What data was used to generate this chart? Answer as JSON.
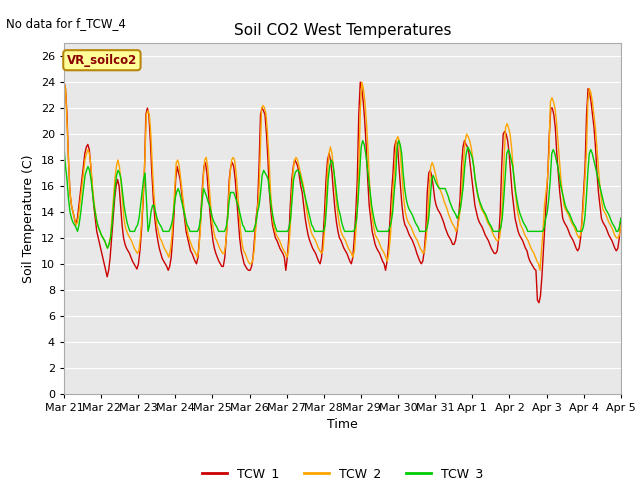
{
  "title": "Soil CO2 West Temperatures",
  "xlabel": "Time",
  "ylabel": "Soil Temperature (C)",
  "no_data_text": "No data for f_TCW_4",
  "annotation_text": "VR_soilco2",
  "ylim": [
    0,
    27
  ],
  "yticks": [
    0,
    2,
    4,
    6,
    8,
    10,
    12,
    14,
    16,
    18,
    20,
    22,
    24,
    26
  ],
  "bg_color": "#e8e8e8",
  "fig_color": "#ffffff",
  "line_colors": {
    "TCW_1": "#cc0000",
    "TCW_2": "#ffa500",
    "TCW_3": "#00cc00"
  },
  "num_days": 15.5,
  "xtick_labels": [
    "Mar 21",
    "Mar 22",
    "Mar 23",
    "Mar 24",
    "Mar 25",
    "Mar 26",
    "Mar 27",
    "Mar 28",
    "Mar 29",
    "Mar 30",
    "Mar 31",
    "Apr 1",
    "Apr 2",
    "Apr 3",
    "Apr 4",
    "Apr 5"
  ],
  "TCW_1": [
    24.0,
    23.5,
    21.5,
    18.0,
    15.5,
    14.5,
    14.0,
    13.5,
    13.0,
    13.5,
    14.5,
    15.5,
    16.5,
    17.5,
    18.5,
    19.0,
    19.2,
    18.8,
    17.5,
    15.8,
    14.5,
    13.5,
    12.5,
    12.0,
    11.5,
    11.0,
    10.5,
    10.0,
    9.5,
    9.0,
    9.5,
    10.5,
    12.0,
    13.5,
    15.0,
    16.0,
    16.5,
    16.0,
    14.5,
    13.0,
    12.0,
    11.5,
    11.2,
    11.0,
    10.8,
    10.5,
    10.2,
    10.0,
    9.8,
    9.6,
    10.0,
    11.0,
    12.5,
    14.5,
    17.0,
    21.5,
    22.0,
    21.5,
    19.5,
    17.0,
    15.0,
    13.5,
    12.5,
    11.8,
    11.2,
    10.8,
    10.4,
    10.2,
    10.0,
    9.8,
    9.5,
    9.8,
    10.5,
    12.0,
    14.0,
    16.5,
    17.5,
    17.0,
    16.5,
    15.5,
    14.5,
    13.5,
    12.5,
    12.0,
    11.5,
    11.0,
    10.8,
    10.5,
    10.2,
    10.0,
    10.5,
    12.0,
    14.0,
    16.0,
    17.5,
    17.8,
    17.0,
    15.5,
    14.0,
    12.8,
    11.8,
    11.2,
    10.8,
    10.5,
    10.2,
    10.0,
    9.8,
    9.8,
    10.5,
    12.0,
    14.0,
    16.5,
    17.5,
    17.8,
    17.5,
    16.5,
    15.0,
    13.5,
    12.0,
    11.0,
    10.5,
    10.0,
    9.8,
    9.6,
    9.5,
    9.5,
    9.8,
    10.5,
    12.0,
    13.5,
    14.5,
    17.5,
    21.5,
    22.0,
    21.8,
    21.5,
    20.0,
    18.0,
    15.5,
    14.0,
    13.0,
    12.5,
    12.0,
    11.8,
    11.5,
    11.2,
    11.0,
    10.8,
    10.5,
    9.5,
    10.5,
    12.0,
    14.5,
    16.5,
    17.5,
    18.0,
    17.8,
    17.5,
    16.8,
    16.0,
    15.5,
    14.5,
    13.5,
    12.8,
    12.2,
    11.8,
    11.5,
    11.2,
    11.0,
    10.8,
    10.5,
    10.2,
    10.0,
    10.5,
    12.0,
    14.0,
    16.5,
    18.0,
    18.5,
    18.0,
    17.0,
    15.5,
    14.2,
    13.2,
    12.5,
    12.0,
    11.8,
    11.5,
    11.2,
    11.0,
    10.8,
    10.5,
    10.2,
    10.0,
    10.5,
    12.0,
    14.0,
    16.5,
    21.5,
    24.0,
    23.5,
    22.5,
    21.0,
    19.0,
    16.5,
    14.5,
    13.5,
    12.5,
    12.0,
    11.5,
    11.2,
    11.0,
    10.8,
    10.5,
    10.2,
    10.0,
    9.5,
    10.2,
    11.5,
    13.5,
    15.5,
    17.0,
    19.0,
    19.5,
    19.2,
    17.5,
    16.0,
    14.5,
    13.5,
    13.0,
    12.8,
    12.5,
    12.2,
    12.0,
    11.8,
    11.5,
    11.2,
    10.8,
    10.5,
    10.2,
    10.0,
    10.2,
    11.0,
    12.5,
    15.5,
    17.0,
    17.2,
    16.8,
    16.0,
    15.0,
    14.5,
    14.2,
    14.0,
    13.8,
    13.5,
    13.2,
    12.8,
    12.5,
    12.2,
    12.0,
    11.8,
    11.5,
    11.5,
    11.8,
    12.5,
    13.5,
    15.0,
    17.5,
    19.0,
    19.5,
    19.2,
    19.0,
    18.5,
    17.5,
    16.5,
    15.5,
    14.5,
    14.0,
    13.5,
    13.2,
    13.0,
    12.8,
    12.5,
    12.2,
    12.0,
    11.8,
    11.5,
    11.2,
    11.0,
    10.8,
    10.8,
    11.0,
    12.0,
    14.0,
    17.5,
    20.0,
    20.2,
    20.0,
    19.5,
    18.5,
    17.0,
    15.5,
    14.5,
    13.5,
    13.0,
    12.5,
    12.2,
    12.0,
    11.8,
    11.5,
    11.2,
    11.0,
    10.5,
    10.2,
    10.0,
    9.8,
    9.6,
    9.5,
    7.2,
    7.0,
    7.5,
    9.0,
    11.0,
    13.0,
    15.0,
    17.0,
    20.0,
    22.0,
    22.0,
    21.5,
    20.5,
    18.5,
    17.0,
    15.5,
    14.5,
    13.5,
    13.2,
    13.0,
    12.8,
    12.5,
    12.2,
    12.0,
    11.8,
    11.5,
    11.2,
    11.0,
    11.2,
    12.0,
    13.5,
    15.5,
    17.5,
    21.5,
    23.5,
    23.2,
    22.5,
    21.5,
    20.5,
    19.0,
    17.0,
    15.5,
    14.5,
    13.5,
    13.2,
    13.0,
    12.8,
    12.5,
    12.2,
    12.0,
    11.8,
    11.5,
    11.2,
    11.0,
    11.2,
    12.0,
    13.5
  ],
  "TCW_2": [
    24.0,
    23.5,
    21.0,
    18.0,
    15.5,
    14.5,
    14.0,
    13.5,
    13.0,
    13.2,
    14.0,
    15.0,
    16.0,
    17.0,
    18.0,
    18.5,
    18.8,
    18.5,
    17.5,
    16.0,
    14.8,
    14.0,
    13.2,
    12.8,
    12.5,
    12.2,
    12.0,
    11.8,
    11.5,
    11.2,
    11.5,
    12.0,
    13.5,
    15.0,
    16.5,
    17.5,
    18.0,
    17.5,
    16.5,
    15.0,
    13.5,
    12.8,
    12.5,
    12.2,
    12.0,
    11.8,
    11.5,
    11.2,
    11.0,
    10.8,
    11.0,
    12.0,
    13.5,
    15.5,
    18.0,
    21.5,
    21.8,
    21.5,
    20.0,
    17.5,
    15.5,
    14.0,
    13.0,
    12.5,
    12.0,
    11.8,
    11.5,
    11.2,
    11.0,
    10.8,
    10.5,
    11.0,
    12.0,
    13.8,
    15.8,
    17.8,
    18.0,
    17.5,
    16.5,
    15.5,
    14.5,
    13.5,
    12.8,
    12.2,
    11.8,
    11.5,
    11.2,
    11.0,
    10.8,
    10.5,
    11.0,
    12.5,
    14.5,
    16.5,
    18.0,
    18.2,
    17.5,
    16.0,
    14.5,
    13.2,
    12.5,
    12.0,
    11.8,
    11.5,
    11.2,
    11.0,
    10.8,
    10.8,
    11.5,
    13.0,
    15.0,
    17.0,
    18.0,
    18.2,
    18.0,
    17.0,
    15.5,
    14.0,
    12.5,
    11.5,
    11.0,
    10.8,
    10.5,
    10.2,
    10.0,
    10.0,
    10.2,
    11.0,
    12.5,
    14.0,
    15.0,
    18.0,
    22.0,
    22.2,
    22.0,
    21.5,
    20.0,
    18.0,
    15.5,
    14.0,
    13.0,
    12.5,
    12.2,
    12.0,
    11.8,
    11.5,
    11.2,
    11.0,
    10.8,
    10.5,
    11.0,
    12.5,
    15.0,
    17.0,
    18.0,
    18.2,
    18.0,
    17.5,
    17.0,
    16.5,
    16.0,
    15.2,
    14.2,
    13.5,
    13.0,
    12.5,
    12.2,
    12.0,
    11.8,
    11.5,
    11.2,
    11.0,
    10.8,
    11.0,
    12.5,
    14.5,
    17.0,
    18.5,
    19.0,
    18.5,
    17.5,
    16.0,
    14.8,
    13.8,
    13.0,
    12.5,
    12.2,
    12.0,
    11.8,
    11.5,
    11.2,
    11.0,
    10.8,
    10.5,
    11.0,
    12.5,
    14.5,
    17.5,
    22.0,
    24.0,
    23.5,
    22.5,
    21.0,
    19.0,
    16.5,
    14.5,
    13.5,
    12.8,
    12.2,
    12.0,
    11.8,
    11.5,
    11.2,
    11.0,
    10.8,
    10.5,
    10.2,
    10.8,
    12.0,
    14.0,
    16.0,
    17.5,
    19.5,
    19.8,
    19.5,
    18.0,
    16.5,
    15.0,
    14.0,
    13.5,
    13.2,
    13.0,
    12.8,
    12.5,
    12.2,
    12.0,
    11.8,
    11.5,
    11.2,
    11.0,
    10.8,
    11.0,
    12.0,
    13.5,
    15.8,
    17.5,
    17.8,
    17.5,
    17.0,
    16.5,
    16.0,
    15.8,
    15.5,
    15.2,
    14.8,
    14.5,
    14.2,
    13.8,
    13.5,
    13.2,
    13.0,
    12.8,
    12.5,
    12.8,
    13.5,
    14.5,
    16.0,
    18.0,
    19.5,
    20.0,
    19.8,
    19.5,
    19.0,
    18.2,
    17.2,
    16.2,
    15.5,
    15.0,
    14.5,
    14.2,
    14.0,
    13.8,
    13.5,
    13.2,
    13.0,
    12.8,
    12.5,
    12.2,
    12.0,
    11.8,
    11.8,
    12.0,
    13.0,
    15.0,
    18.0,
    20.5,
    20.8,
    20.5,
    20.0,
    19.0,
    17.5,
    16.0,
    15.0,
    14.0,
    13.5,
    13.0,
    12.8,
    12.5,
    12.2,
    12.0,
    11.8,
    11.5,
    11.2,
    11.0,
    10.8,
    10.5,
    10.2,
    10.0,
    9.5,
    11.0,
    12.5,
    14.5,
    15.5,
    16.5,
    18.5,
    22.5,
    22.8,
    22.5,
    22.0,
    21.0,
    19.5,
    18.0,
    16.5,
    15.5,
    14.5,
    14.2,
    14.0,
    13.8,
    13.5,
    13.2,
    13.0,
    12.8,
    12.5,
    12.2,
    12.0,
    12.2,
    13.0,
    14.5,
    16.5,
    18.5,
    22.5,
    23.5,
    23.2,
    22.5,
    21.5,
    20.5,
    19.0,
    17.5,
    16.0,
    15.0,
    14.2,
    14.0,
    13.8,
    13.5,
    13.2,
    13.0,
    12.8,
    12.5,
    12.2,
    12.0,
    12.0,
    12.2,
    13.0
  ],
  "TCW_3": [
    19.0,
    17.5,
    16.5,
    15.0,
    14.0,
    13.5,
    13.2,
    13.0,
    12.8,
    12.5,
    13.0,
    13.8,
    14.8,
    15.8,
    16.8,
    17.2,
    17.5,
    17.2,
    16.5,
    15.5,
    14.5,
    13.8,
    13.2,
    12.8,
    12.5,
    12.2,
    12.0,
    11.8,
    11.5,
    11.2,
    11.5,
    12.0,
    13.0,
    14.5,
    15.8,
    16.8,
    17.2,
    17.0,
    16.5,
    15.5,
    14.5,
    13.8,
    13.2,
    12.8,
    12.5,
    12.5,
    12.5,
    12.5,
    12.8,
    13.0,
    13.5,
    14.5,
    15.5,
    16.5,
    17.0,
    14.8,
    12.5,
    13.0,
    14.0,
    14.5,
    14.5,
    14.0,
    13.5,
    13.2,
    13.0,
    12.8,
    12.5,
    12.5,
    12.5,
    12.5,
    12.5,
    12.8,
    13.2,
    14.0,
    15.0,
    15.5,
    15.8,
    15.5,
    15.0,
    14.5,
    14.0,
    13.5,
    13.0,
    12.8,
    12.5,
    12.5,
    12.5,
    12.5,
    12.5,
    12.5,
    12.8,
    13.5,
    14.8,
    15.8,
    15.5,
    15.2,
    14.8,
    14.5,
    14.0,
    13.5,
    13.2,
    13.0,
    12.8,
    12.5,
    12.5,
    12.5,
    12.5,
    12.5,
    12.8,
    13.5,
    14.8,
    15.5,
    15.5,
    15.5,
    15.2,
    14.8,
    14.5,
    14.0,
    13.5,
    13.0,
    12.8,
    12.5,
    12.5,
    12.5,
    12.5,
    12.5,
    12.5,
    12.8,
    13.2,
    14.0,
    14.5,
    15.5,
    16.8,
    17.2,
    17.0,
    16.8,
    16.5,
    15.5,
    14.5,
    13.8,
    13.2,
    12.8,
    12.5,
    12.5,
    12.5,
    12.5,
    12.5,
    12.5,
    12.5,
    12.5,
    12.8,
    13.5,
    15.0,
    16.5,
    17.0,
    17.2,
    17.2,
    17.0,
    16.5,
    16.0,
    15.5,
    15.0,
    14.5,
    14.0,
    13.5,
    13.0,
    12.8,
    12.5,
    12.5,
    12.5,
    12.5,
    12.5,
    12.5,
    12.5,
    13.0,
    14.5,
    16.5,
    17.5,
    18.0,
    17.8,
    17.0,
    16.0,
    15.0,
    14.2,
    13.8,
    13.2,
    12.8,
    12.5,
    12.5,
    12.5,
    12.5,
    12.5,
    12.5,
    12.5,
    12.8,
    13.5,
    15.0,
    17.0,
    19.0,
    19.5,
    19.2,
    18.5,
    17.5,
    16.5,
    15.5,
    14.5,
    13.8,
    13.2,
    12.8,
    12.5,
    12.5,
    12.5,
    12.5,
    12.5,
    12.5,
    12.5,
    12.5,
    12.8,
    13.2,
    14.0,
    15.5,
    16.8,
    19.0,
    19.5,
    19.2,
    18.5,
    17.0,
    15.8,
    15.0,
    14.5,
    14.2,
    14.0,
    13.8,
    13.5,
    13.2,
    13.0,
    12.8,
    12.5,
    12.5,
    12.5,
    12.5,
    12.5,
    12.8,
    13.5,
    15.0,
    16.5,
    16.8,
    16.5,
    16.2,
    16.0,
    15.8,
    15.8,
    15.8,
    15.8,
    15.8,
    15.5,
    15.2,
    14.8,
    14.5,
    14.2,
    14.0,
    13.8,
    13.5,
    13.8,
    14.2,
    15.0,
    16.0,
    17.5,
    18.5,
    19.0,
    18.8,
    18.5,
    18.2,
    17.5,
    16.5,
    15.8,
    15.2,
    14.8,
    14.5,
    14.2,
    14.0,
    13.8,
    13.5,
    13.2,
    13.0,
    12.8,
    12.5,
    12.5,
    12.5,
    12.5,
    12.5,
    12.8,
    13.5,
    15.0,
    16.8,
    18.5,
    18.8,
    18.5,
    18.0,
    17.5,
    16.5,
    15.5,
    14.8,
    14.2,
    13.8,
    13.5,
    13.2,
    13.0,
    12.8,
    12.5,
    12.5,
    12.5,
    12.5,
    12.5,
    12.5,
    12.5,
    12.5,
    12.5,
    12.5,
    12.5,
    12.8,
    13.5,
    14.0,
    15.0,
    16.5,
    18.5,
    18.8,
    18.5,
    18.0,
    17.5,
    16.8,
    16.0,
    15.5,
    15.0,
    14.5,
    14.2,
    14.0,
    13.8,
    13.5,
    13.2,
    13.0,
    12.8,
    12.5,
    12.5,
    12.5,
    12.5,
    12.8,
    13.5,
    15.0,
    17.0,
    18.5,
    18.8,
    18.5,
    18.0,
    17.5,
    17.0,
    16.5,
    16.0,
    15.5,
    15.0,
    14.5,
    14.2,
    14.0,
    13.8,
    13.5,
    13.2,
    13.0,
    12.8,
    12.5,
    12.5,
    12.8,
    13.5
  ]
}
